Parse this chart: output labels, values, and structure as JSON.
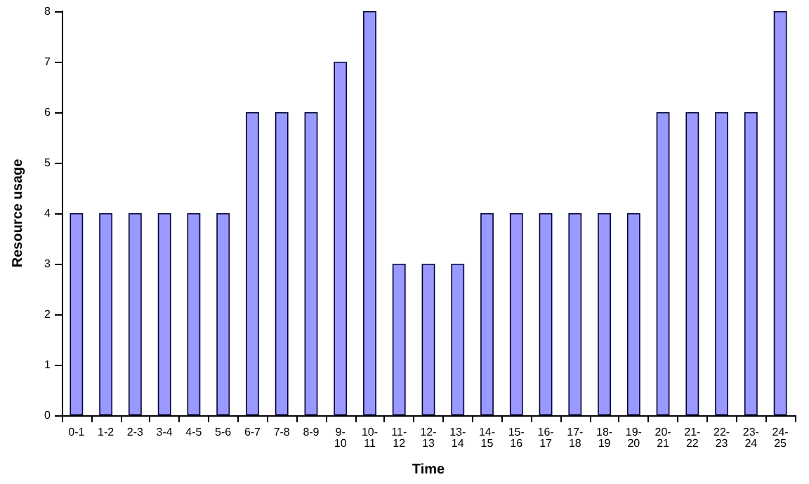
{
  "chart_data": {
    "type": "bar",
    "xlabel": "Time",
    "ylabel": "Resource usage",
    "categories": [
      "0-1",
      "1-2",
      "2-3",
      "3-4",
      "4-5",
      "5-6",
      "6-7",
      "7-8",
      "8-9",
      "9-10",
      "10-11",
      "11-12",
      "12-13",
      "13-14",
      "14-15",
      "15-16",
      "16-17",
      "17-18",
      "18-19",
      "19-20",
      "20-21",
      "21-22",
      "22-23",
      "23-24",
      "24-25"
    ],
    "values": [
      4,
      4,
      4,
      4,
      4,
      4,
      6,
      6,
      6,
      7,
      8,
      3,
      3,
      3,
      4,
      4,
      4,
      4,
      4,
      4,
      6,
      6,
      6,
      6,
      8
    ],
    "color": "#9999ff",
    "ylim": [
      0,
      8
    ],
    "yticks": [
      0,
      1,
      2,
      3,
      4,
      5,
      6,
      7,
      8
    ]
  }
}
